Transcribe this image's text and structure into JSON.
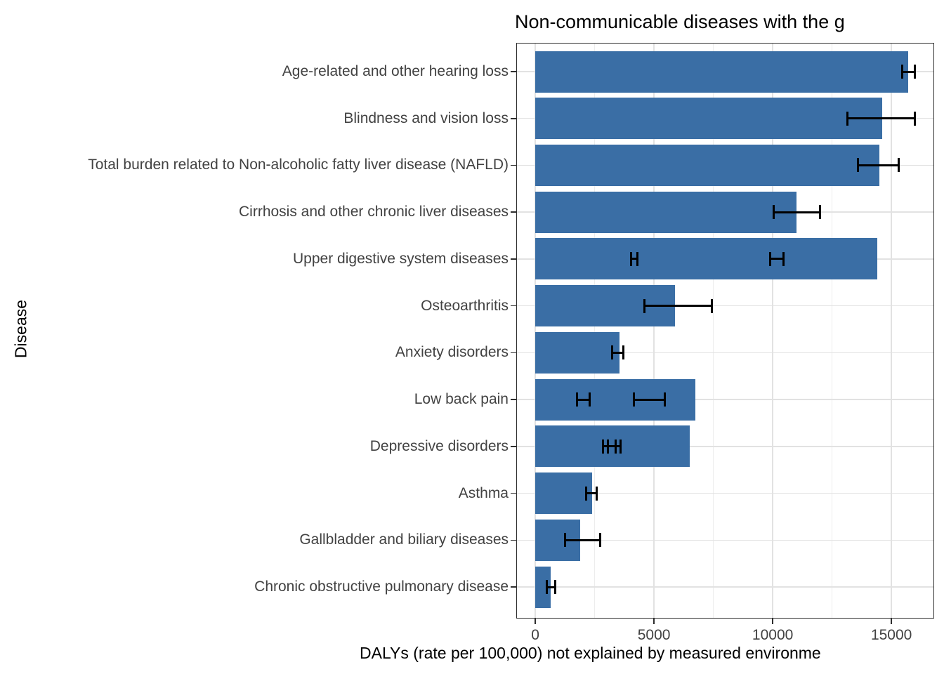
{
  "title": "Non-communicable diseases with the g",
  "axes": {
    "x_label": "DALYs (rate per 100,000) not explained by measured environme",
    "y_label": "Disease",
    "x_tick_labels": [
      "0",
      "5000",
      "10000",
      "15000"
    ]
  },
  "colors": {
    "bar_fill": "#3A6EA5",
    "error_bar": "#000000",
    "grid_major": "#E2E2E2",
    "grid_minor": "#EDEDED",
    "panel_border": "#2E2E2E",
    "axis_text": "#424242",
    "title_text": "#000000",
    "background": "#FFFFFF"
  },
  "chart_data": {
    "type": "bar",
    "orientation": "horizontal",
    "title": "Non-communicable diseases with the g",
    "xlabel": "DALYs (rate per 100,000) not explained by measured environme",
    "ylabel": "Disease",
    "xlim": [
      -800,
      16800
    ],
    "x_breaks_major": [
      0,
      5000,
      10000,
      15000
    ],
    "x_breaks_minor": [
      2500,
      7500,
      12500
    ],
    "grid": true,
    "legend": "none",
    "categories": [
      "Age-related and other hearing loss",
      "Blindness and vision loss",
      "Total burden related to Non-alcoholic fatty liver disease (NAFLD)",
      "Cirrhosis and other chronic liver diseases",
      "Upper digestive system diseases",
      "Osteoarthritis",
      "Anxiety disorders",
      "Low back pain",
      "Depressive disorders",
      "Asthma",
      "Gallbladder and biliary diseases",
      "Chronic obstructive pulmonary disease"
    ],
    "values": [
      15700,
      14600,
      14500,
      11000,
      14400,
      5900,
      3550,
      6750,
      6500,
      2400,
      1900,
      650
    ],
    "error_bars": [
      [
        [
          15450,
          16000
        ]
      ],
      [
        [
          13150,
          16000
        ]
      ],
      [
        [
          13600,
          15300
        ]
      ],
      [
        [
          10050,
          12000
        ]
      ],
      [
        [
          4050,
          4300
        ],
        [
          9900,
          10450
        ]
      ],
      [
        [
          4600,
          7430
        ]
      ],
      [
        [
          3250,
          3700
        ]
      ],
      [
        [
          1750,
          2300
        ],
        [
          4150,
          5450
        ]
      ],
      [
        [
          2850,
          3400
        ],
        [
          3050,
          3600
        ]
      ],
      [
        [
          2150,
          2600
        ]
      ],
      [
        [
          1270,
          2740
        ]
      ],
      [
        [
          500,
          830
        ]
      ]
    ]
  }
}
